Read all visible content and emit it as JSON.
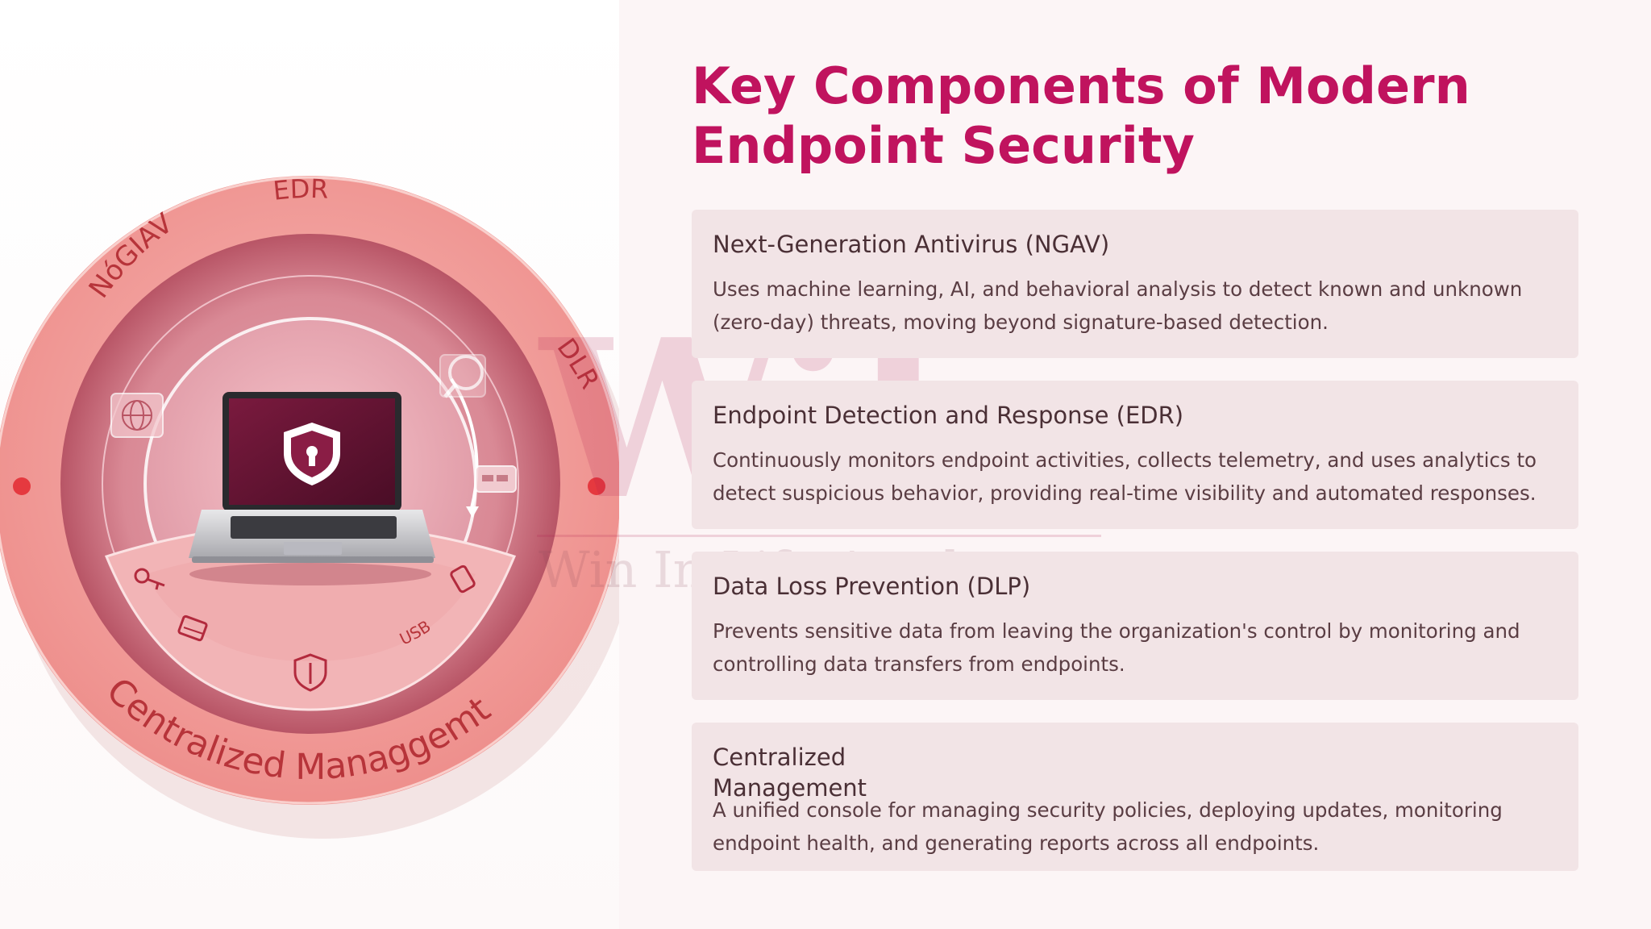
{
  "title": "Key Components of Modern Endpoint Security",
  "illustration": {
    "ring_labels": {
      "ngav": "NóGIAV",
      "edr": "EDR",
      "dlp": "DLR",
      "management": "Centralized Managgemt",
      "usb": "USB"
    }
  },
  "watermark": {
    "logo": "WiL",
    "text": "Win In Life Academy"
  },
  "cards": [
    {
      "title": "Next-Generation Antivirus (NGAV)",
      "description": "Uses machine learning, AI, and behavioral analysis to detect known and unknown (zero-day) threats, moving beyond signature-based detection."
    },
    {
      "title": "Endpoint Detection and Response (EDR)",
      "description": "Continuously monitors endpoint activities, collects telemetry, and uses analytics to detect suspicious behavior, providing real-time visibility and automated responses."
    },
    {
      "title": "Data Loss Prevention (DLP)",
      "description": "Prevents sensitive data from leaving the organization's control by monitoring and controlling data transfers from endpoints."
    },
    {
      "title": "Centralized Management",
      "description": "A unified console for managing security policies, deploying updates, monitoring endpoint health, and generating reports across all endpoints."
    }
  ],
  "colors": {
    "accent": "#c0135e",
    "ring": "#f3a7a5",
    "card_bg": "#f2e4e6",
    "panel_bg": "#fcf5f6"
  }
}
